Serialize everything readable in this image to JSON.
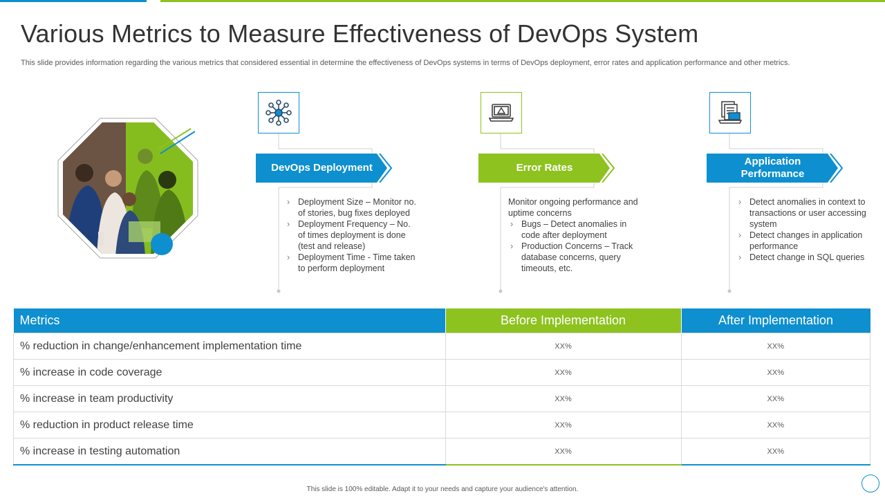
{
  "title": "Various Metrics to Measure Effectiveness of DevOps System",
  "subtitle": "This slide provides information regarding the various metrics that considered essential in determine the effectiveness of DevOps systems in terms of DevOps deployment, error rates and application performance and other metrics.",
  "colors": {
    "blue": "#0e8fcf",
    "green": "#8dc21f"
  },
  "columns": [
    {
      "icon": "network-hub-icon",
      "heading": "DevOps Deployment",
      "lead": "",
      "bullets": [
        "Deployment Size – Monitor no. of stories, bug fixes deployed",
        "Deployment Frequency – No. of times deployment is done (test and release)",
        "Deployment Time - Time taken to perform deployment"
      ]
    },
    {
      "icon": "laptop-warning-icon",
      "heading": "Error Rates",
      "lead": "Monitor ongoing performance and uptime concerns",
      "bullets": [
        "Bugs – Detect anomalies in code after deployment",
        "Production Concerns – Track database concerns, query timeouts, etc."
      ]
    },
    {
      "icon": "documents-laptop-icon",
      "heading": "Application Performance",
      "lead": "",
      "bullets": [
        "Detect anomalies in context to transactions or user accessing system",
        "Detect changes in application performance",
        "Detect change in SQL queries"
      ]
    }
  ],
  "table": {
    "headers": [
      "Metrics",
      "Before Implementation",
      "After Implementation"
    ],
    "rows": [
      [
        "% reduction in change/enhancement  implementation time",
        "XX%",
        "XX%"
      ],
      [
        "% increase in code coverage",
        "XX%",
        "XX%"
      ],
      [
        "% increase in team productivity",
        "XX%",
        "XX%"
      ],
      [
        "% reduction in product release time",
        "XX%",
        "XX%"
      ],
      [
        "% increase in testing automation",
        "XX%",
        "XX%"
      ]
    ]
  },
  "footer": "This slide is 100% editable. Adapt it to your needs and capture your audience's attention."
}
